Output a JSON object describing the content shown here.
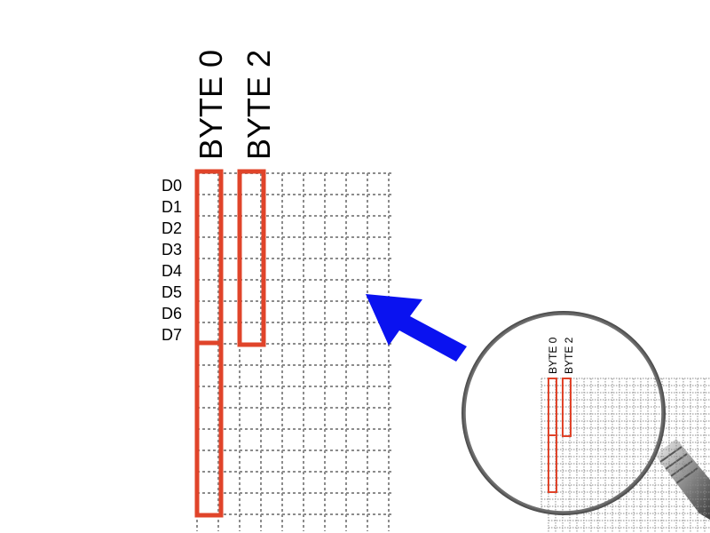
{
  "main_grid": {
    "byte_labels": [
      "BYTE 0",
      "BYTE 2"
    ],
    "bit_labels": [
      "D0",
      "D1",
      "D2",
      "D3",
      "D4",
      "D5",
      "D6",
      "D7"
    ]
  },
  "magnifier": {
    "byte_labels": [
      "BYTE 0",
      "BYTE 2"
    ]
  },
  "colors": {
    "highlight": "#e0442a",
    "arrow": "#0a12f0",
    "grid": "#8c8c8c",
    "text": "#000000"
  },
  "icons": {
    "arrow": "arrow-icon",
    "magnifier": "magnifying-glass-icon"
  }
}
